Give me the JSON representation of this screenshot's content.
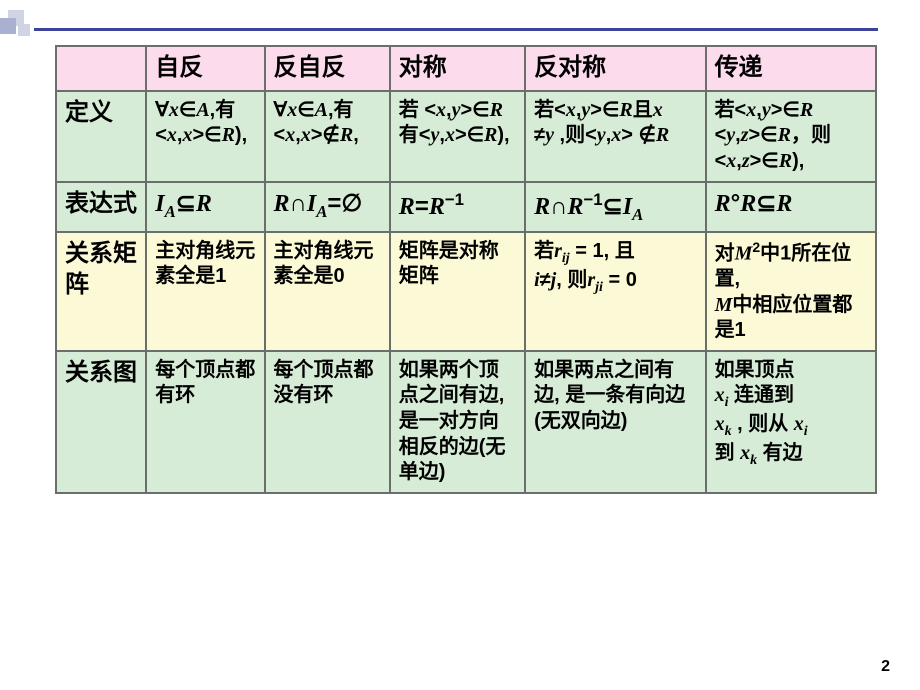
{
  "page_number": "2",
  "colors": {
    "header_bg": "#fcdcec",
    "green_bg": "#d6ecd6",
    "yellow_bg": "#fcfad6",
    "border": "#6b6f6b",
    "deco_dark": "#aab0d0",
    "deco_light": "#d0d3e4",
    "deco_line": "#3b4499"
  },
  "headers": {
    "c1": "自反",
    "c2": "反自反",
    "c3": "对称",
    "c4": "反对称",
    "c5": "传递"
  },
  "rowlabels": {
    "def": "定义",
    "exp": "表达式",
    "mat": "关系矩阵",
    "gra": "关系图"
  },
  "def": {
    "c1": "∀<i class=\"var\">x</i>∈<i class=\"var\">A</i>,有<br>&lt;<i class=\"var\">x</i>,<i class=\"var\">x</i>&gt;∈<i class=\"var\">R</i>),",
    "c2": "∀<i class=\"var\">x</i>∈<i class=\"var\">A</i>,有<br>&lt;<i class=\"var\">x</i>,<i class=\"var\">x</i>&gt;∉<i class=\"var\">R</i>,",
    "c3": "若 &lt;<i class=\"var\">x</i>,<i class=\"var\">y</i>&gt;∈<i class=\"var\">R</i><br>有&lt;<i class=\"var\">y</i>,<i class=\"var\">x</i>&gt;∈<i class=\"var\">R</i>),",
    "c4": "若&lt;<i class=\"var\">x</i>,<i class=\"var\">y</i>&gt;∈<i class=\"var\">R</i>且<i class=\"var\">x</i><br>≠<i class=\"var\">y</i> ,则&lt;<i class=\"var\">y</i>,<i class=\"var\">x</i>&gt; ∉<i class=\"var\">R</i>",
    "c5": "若&lt;<i class=\"var\">x</i>,<i class=\"var\">y</i>&gt;∈<i class=\"var\">R</i><br>&lt;<i class=\"var\">y</i>,<i class=\"var\">z</i>&gt;∈<i class=\"var\">R</i>，则<br>&lt;<i class=\"var\">x</i>,<i class=\"var\">z</i>&gt;∈<i class=\"var\">R</i>),"
  },
  "exp": {
    "c1": "<i class=\"var\">I<sub>A</sub></i>⊆<i class=\"var\">R</i>",
    "c2": "<i class=\"var\">R</i>∩<i class=\"var\">I<sub>A</sub></i>=∅",
    "c3": "<i class=\"var\">R</i>=<i class=\"var\">R</i><sup>−1</sup>",
    "c4": "<i class=\"var\">R</i>∩<i class=\"var\">R</i><sup>−1</sup>⊆<i class=\"var\">I<sub>A</sub></i>",
    "c5": "<i class=\"var\">R</i>°<i class=\"var\">R</i>⊆<i class=\"var\">R</i>"
  },
  "mat": {
    "c1": "主对角线元素全是1",
    "c2": "主对角线元素全是0",
    "c3": "矩阵是对称矩阵",
    "c4": "若<i class=\"var\">r<sub>ij</sub></i> = 1, 且<br><i class=\"var\">i</i>≠<i class=\"var\">j</i>, 则<i class=\"var\">r<sub>ji</sub></i> = 0",
    "c5": "对<i class=\"var\">M</i><sup>2</sup>中1所在位置,<br><i class=\"var\">M</i>中相应位置都是1"
  },
  "gra": {
    "c1": "每个顶点都有环",
    "c2": "每个顶点都没有环",
    "c3": "如果两个顶点之间有边, 是一对方向相反的边(无单边)",
    "c4": "如果两点之间有边, 是一条有向边(无双向边)",
    "c5": "如果顶点<br><i class=\"var\">x<sub>i</sub></i> 连通到<br><i class=\"var\">x<sub>k</sub></i> , 则从 <i class=\"var\">x<sub>i</sub></i><br>到 <i class=\"var\">x<sub>k</sub></i> 有边"
  }
}
